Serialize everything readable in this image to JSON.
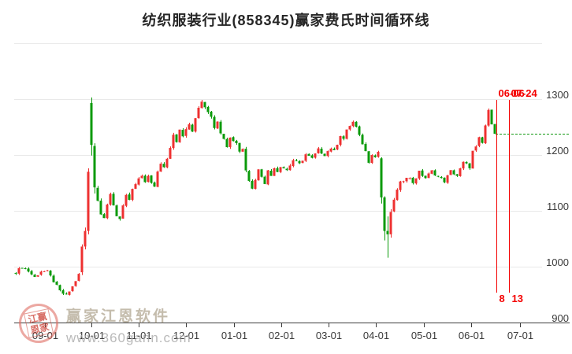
{
  "page": {
    "title": "纺织服装行业(858345)赢家费氏时间循环线"
  },
  "watermark": {
    "brand": "赢家江恩软件",
    "url": "www.360gann.com",
    "seal_top": "江赢",
    "seal_bottom": "恩家"
  },
  "chart_data": {
    "type": "candlestick",
    "title": "纺织服装行业(858345)赢家费氏时间循环线",
    "convention": "red = up day, green = down day (Chinese convention)",
    "up_color": "#ee3030",
    "down_color": "#0a9a0a",
    "grid_color": "#e9e9e9",
    "axis_color": "#3c3c3c",
    "y_axis": {
      "min": 900,
      "max": 1400,
      "position": "right",
      "ticks": [
        900,
        1000,
        1100,
        1200,
        1300
      ],
      "grid_values": [
        1000,
        1100,
        1200,
        1300,
        1400
      ]
    },
    "x_ticks": [
      {
        "label": "09-01",
        "day": 9.25
      },
      {
        "label": "10-01",
        "day": 24
      },
      {
        "label": "11-01",
        "day": 39
      },
      {
        "label": "12-01",
        "day": 54
      },
      {
        "label": "01-01",
        "day": 69.25
      },
      {
        "label": "02-01",
        "day": 84.25
      },
      {
        "label": "03-01",
        "day": 99.25
      },
      {
        "label": "04-01",
        "day": 114.25
      },
      {
        "label": "05-01",
        "day": 129.5
      },
      {
        "label": "06-01",
        "day": 144.5
      },
      {
        "label": "07-01",
        "day": 160
      }
    ],
    "num_days": 153,
    "price_path": [
      [
        0,
        990,
        5
      ],
      [
        2,
        1000,
        5
      ],
      [
        4,
        992,
        5
      ],
      [
        6,
        981,
        5
      ],
      [
        8,
        992,
        5
      ],
      [
        10,
        991,
        5
      ],
      [
        12,
        974,
        5
      ],
      [
        14,
        956,
        5
      ],
      [
        16,
        948,
        5
      ],
      [
        18,
        964,
        5
      ],
      [
        20,
        986,
        4
      ],
      [
        26,
        1118,
        9
      ],
      [
        27,
        1098,
        8
      ],
      [
        28,
        1090,
        8
      ],
      [
        29,
        1112,
        8
      ],
      [
        30,
        1126,
        8
      ],
      [
        31,
        1108,
        7
      ],
      [
        32,
        1092,
        7
      ],
      [
        33,
        1086,
        7
      ],
      [
        34,
        1112,
        7
      ],
      [
        35,
        1128,
        7
      ],
      [
        36,
        1116,
        7
      ],
      [
        37,
        1136,
        7
      ],
      [
        38,
        1148,
        7
      ],
      [
        39,
        1156,
        7
      ],
      [
        40,
        1162,
        7
      ],
      [
        41,
        1148,
        7
      ],
      [
        42,
        1163,
        7
      ],
      [
        43,
        1152,
        6
      ],
      [
        44,
        1142,
        6
      ],
      [
        45,
        1168,
        7
      ],
      [
        46,
        1186,
        7
      ],
      [
        47,
        1178,
        7
      ],
      [
        48,
        1196,
        7
      ],
      [
        49,
        1216,
        8
      ],
      [
        50,
        1238,
        8
      ],
      [
        51,
        1226,
        7
      ],
      [
        52,
        1243,
        7
      ],
      [
        53,
        1233,
        7
      ],
      [
        54,
        1247,
        7
      ],
      [
        55,
        1252,
        7
      ],
      [
        56,
        1242,
        7
      ],
      [
        57,
        1268,
        7
      ],
      [
        58,
        1286,
        7
      ],
      [
        59,
        1298,
        7
      ],
      [
        60,
        1288,
        7
      ],
      [
        61,
        1280,
        7
      ],
      [
        62,
        1266,
        7
      ],
      [
        63,
        1252,
        7
      ],
      [
        64,
        1263,
        7
      ],
      [
        65,
        1242,
        7
      ],
      [
        66,
        1228,
        7
      ],
      [
        67,
        1216,
        7
      ],
      [
        68,
        1232,
        7
      ],
      [
        69,
        1226,
        6
      ],
      [
        70,
        1222,
        6
      ],
      [
        71,
        1206,
        6
      ],
      [
        72,
        1213,
        6
      ],
      [
        73,
        1176,
        7
      ],
      [
        74,
        1156,
        7
      ],
      [
        75,
        1139,
        7
      ],
      [
        76,
        1158,
        7
      ],
      [
        77,
        1173,
        6
      ],
      [
        78,
        1163,
        6
      ],
      [
        79,
        1151,
        6
      ],
      [
        80,
        1171,
        6
      ],
      [
        81,
        1163,
        6
      ],
      [
        82,
        1179,
        6
      ],
      [
        83,
        1171,
        6
      ],
      [
        84,
        1181,
        6
      ],
      [
        86,
        1173,
        6
      ],
      [
        88,
        1191,
        6
      ],
      [
        90,
        1183,
        6
      ],
      [
        92,
        1201,
        6
      ],
      [
        94,
        1193,
        6
      ],
      [
        96,
        1209,
        6
      ],
      [
        98,
        1201,
        6
      ],
      [
        100,
        1213,
        6
      ],
      [
        101,
        1206,
        6
      ],
      [
        102,
        1221,
        6
      ],
      [
        103,
        1236,
        6
      ],
      [
        104,
        1229,
        6
      ],
      [
        105,
        1243,
        6
      ],
      [
        106,
        1253,
        6
      ],
      [
        107,
        1259,
        6
      ],
      [
        108,
        1249,
        6
      ],
      [
        109,
        1233,
        6
      ],
      [
        110,
        1221,
        6
      ],
      [
        111,
        1206,
        6
      ],
      [
        112,
        1189,
        6
      ],
      [
        113,
        1203,
        6
      ],
      [
        114,
        1196,
        6
      ],
      [
        115,
        1206,
        6
      ],
      [
        120,
        1122,
        8
      ],
      [
        121,
        1136,
        7
      ],
      [
        122,
        1149,
        7
      ],
      [
        124,
        1163,
        7
      ],
      [
        126,
        1151,
        6
      ],
      [
        128,
        1169,
        6
      ],
      [
        130,
        1159,
        6
      ],
      [
        132,
        1171,
        5
      ],
      [
        134,
        1161,
        5
      ],
      [
        136,
        1153,
        5
      ],
      [
        138,
        1171,
        5
      ],
      [
        140,
        1163,
        5
      ],
      [
        142,
        1186,
        6
      ],
      [
        144,
        1179,
        6
      ],
      [
        145,
        1206,
        6
      ],
      [
        146,
        1213,
        6
      ],
      [
        147,
        1229,
        6
      ],
      [
        148,
        1221,
        6
      ],
      [
        149,
        1253,
        6
      ],
      [
        150,
        1278,
        6
      ],
      [
        151,
        1258,
        6
      ],
      [
        152,
        1238,
        3
      ]
    ],
    "special_candles": {
      "21": [
        990,
        1036,
        985,
        1040
      ],
      "22": [
        1036,
        1064,
        1031,
        1070
      ],
      "23": [
        1064,
        1170,
        1058,
        1176
      ],
      "24": [
        1293,
        1218,
        1199,
        1303
      ],
      "25": [
        1216,
        1142,
        1131,
        1221
      ],
      "116": [
        1194,
        1124,
        1113,
        1196
      ],
      "117": [
        1124,
        1064,
        1047,
        1126
      ],
      "118": [
        1064,
        1058,
        1016,
        1090
      ],
      "119": [
        1058,
        1098,
        1052,
        1103
      ]
    },
    "last_close": 1238,
    "last_close_line": {
      "value": 1238,
      "style": "dashed",
      "color": "#119911"
    },
    "cycle_lines": [
      {
        "x": 630.5,
        "date": "06-06",
        "fib": "8"
      },
      {
        "x": 646.5,
        "date": "07-24",
        "fib": "13"
      }
    ],
    "cycle_line_color": "#f40000"
  }
}
